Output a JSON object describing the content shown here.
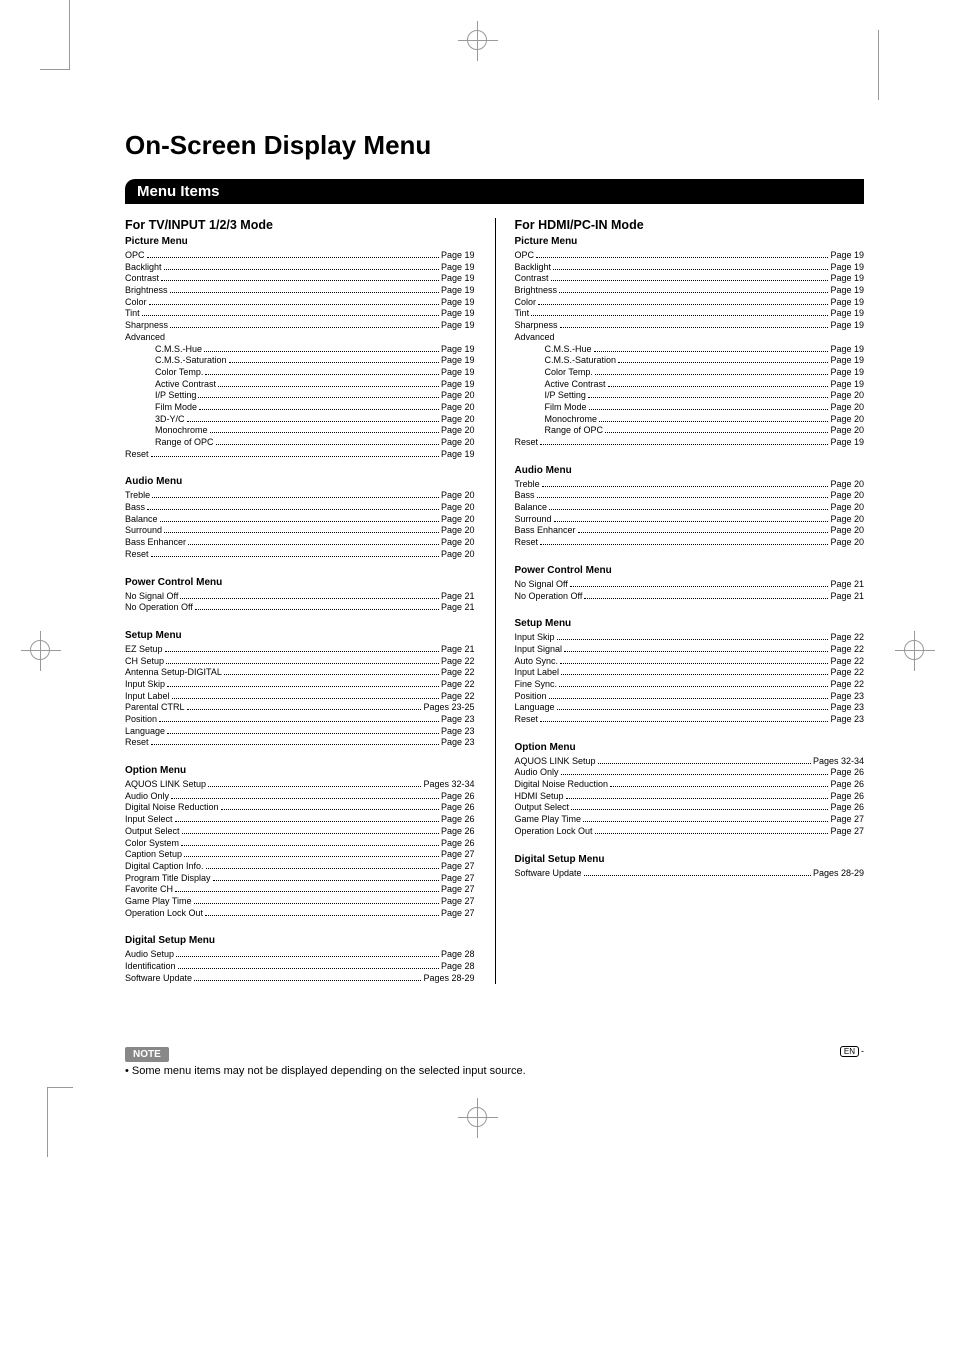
{
  "title": "On-Screen Display Menu",
  "menu_items_header": "Menu Items",
  "note_label": "NOTE",
  "note_text": "Some menu items may not be displayed depending on the selected input source.",
  "footer": {
    "en": "EN",
    "dash": "-"
  },
  "left": {
    "mode": "For TV/INPUT 1/2/3 Mode",
    "sections": [
      {
        "title": "Picture Menu",
        "items": [
          {
            "label": "OPC",
            "page": "Page 19"
          },
          {
            "label": "Backlight",
            "page": "Page 19"
          },
          {
            "label": "Contrast",
            "page": "Page 19"
          },
          {
            "label": "Brightness",
            "page": "Page 19"
          },
          {
            "label": "Color",
            "page": "Page 19"
          },
          {
            "label": "Tint",
            "page": "Page 19"
          },
          {
            "label": "Sharpness",
            "page": "Page 19"
          },
          {
            "label": "Advanced",
            "nopage": true
          },
          {
            "label": "C.M.S.-Hue",
            "page": "Page 19",
            "indent": true
          },
          {
            "label": "C.M.S.-Saturation",
            "page": "Page 19",
            "indent": true
          },
          {
            "label": "Color Temp.",
            "page": "Page 19",
            "indent": true
          },
          {
            "label": "Active Contrast",
            "page": "Page 19",
            "indent": true
          },
          {
            "label": "I/P Setting",
            "page": "Page 20",
            "indent": true
          },
          {
            "label": "Film Mode",
            "page": "Page 20",
            "indent": true
          },
          {
            "label": "3D-Y/C",
            "page": "Page 20",
            "indent": true
          },
          {
            "label": "Monochrome",
            "page": "Page 20",
            "indent": true
          },
          {
            "label": "Range of OPC",
            "page": "Page 20",
            "indent": true
          },
          {
            "label": "Reset",
            "page": "Page 19"
          }
        ]
      },
      {
        "title": "Audio Menu",
        "items": [
          {
            "label": "Treble",
            "page": "Page 20"
          },
          {
            "label": "Bass",
            "page": "Page 20"
          },
          {
            "label": "Balance",
            "page": "Page 20"
          },
          {
            "label": "Surround",
            "page": "Page 20"
          },
          {
            "label": "Bass Enhancer",
            "page": "Page 20"
          },
          {
            "label": "Reset",
            "page": "Page 20"
          }
        ]
      },
      {
        "title": "Power Control Menu",
        "items": [
          {
            "label": "No Signal Off",
            "page": "Page 21"
          },
          {
            "label": "No Operation Off",
            "page": "Page 21"
          }
        ]
      },
      {
        "title": "Setup Menu",
        "items": [
          {
            "label": "EZ Setup",
            "page": "Page 21"
          },
          {
            "label": "CH Setup",
            "page": "Page 22"
          },
          {
            "label": "Antenna Setup-DIGITAL",
            "page": "Page 22"
          },
          {
            "label": "Input Skip",
            "page": "Page 22"
          },
          {
            "label": "Input Label",
            "page": "Page 22"
          },
          {
            "label": "Parental CTRL",
            "page": "Pages 23-25"
          },
          {
            "label": "Position",
            "page": "Page 23"
          },
          {
            "label": "Language",
            "page": "Page 23"
          },
          {
            "label": "Reset",
            "page": "Page 23"
          }
        ]
      },
      {
        "title": "Option Menu",
        "items": [
          {
            "label": "AQUOS LINK Setup",
            "page": "Pages 32-34"
          },
          {
            "label": "Audio Only",
            "page": "Page 26"
          },
          {
            "label": "Digital Noise Reduction",
            "page": "Page 26"
          },
          {
            "label": "Input Select",
            "page": "Page 26"
          },
          {
            "label": "Output Select",
            "page": "Page 26"
          },
          {
            "label": "Color System",
            "page": "Page 26"
          },
          {
            "label": "Caption Setup",
            "page": "Page 27"
          },
          {
            "label": "Digital Caption Info.",
            "page": "Page 27"
          },
          {
            "label": "Program Title Display",
            "page": "Page 27"
          },
          {
            "label": "Favorite CH",
            "page": "Page 27"
          },
          {
            "label": "Game Play Time",
            "page": "Page 27"
          },
          {
            "label": "Operation Lock Out",
            "page": "Page 27"
          }
        ]
      },
      {
        "title": "Digital Setup Menu",
        "items": [
          {
            "label": "Audio Setup",
            "page": "Page 28"
          },
          {
            "label": "Identification",
            "page": "Page 28"
          },
          {
            "label": "Software Update",
            "page": "Pages 28-29"
          }
        ]
      }
    ]
  },
  "right": {
    "mode": "For HDMI/PC-IN Mode",
    "sections": [
      {
        "title": "Picture Menu",
        "items": [
          {
            "label": "OPC",
            "page": "Page 19"
          },
          {
            "label": "Backlight",
            "page": "Page 19"
          },
          {
            "label": "Contrast",
            "page": "Page 19"
          },
          {
            "label": "Brightness",
            "page": "Page 19"
          },
          {
            "label": "Color",
            "page": "Page 19"
          },
          {
            "label": "Tint",
            "page": "Page 19"
          },
          {
            "label": "Sharpness",
            "page": "Page 19"
          },
          {
            "label": "Advanced",
            "nopage": true
          },
          {
            "label": "C.M.S.-Hue",
            "page": "Page 19",
            "indent": true
          },
          {
            "label": "C.M.S.-Saturation",
            "page": "Page 19",
            "indent": true
          },
          {
            "label": "Color Temp.",
            "page": "Page 19",
            "indent": true
          },
          {
            "label": "Active Contrast",
            "page": "Page 19",
            "indent": true
          },
          {
            "label": "I/P Setting",
            "page": "Page 20",
            "indent": true
          },
          {
            "label": "Film Mode",
            "page": "Page 20",
            "indent": true
          },
          {
            "label": "Monochrome",
            "page": "Page 20",
            "indent": true
          },
          {
            "label": "Range of OPC",
            "page": "Page 20",
            "indent": true
          },
          {
            "label": "Reset",
            "page": "Page 19"
          }
        ]
      },
      {
        "title": "Audio Menu",
        "items": [
          {
            "label": "Treble",
            "page": "Page 20"
          },
          {
            "label": "Bass",
            "page": "Page 20"
          },
          {
            "label": "Balance",
            "page": "Page 20"
          },
          {
            "label": "Surround",
            "page": "Page 20"
          },
          {
            "label": "Bass Enhancer",
            "page": "Page 20"
          },
          {
            "label": "Reset",
            "page": "Page 20"
          }
        ]
      },
      {
        "title": "Power Control Menu",
        "items": [
          {
            "label": "No Signal Off",
            "page": "Page 21"
          },
          {
            "label": "No Operation Off",
            "page": "Page 21"
          }
        ]
      },
      {
        "title": "Setup Menu",
        "items": [
          {
            "label": "Input Skip",
            "page": "Page 22"
          },
          {
            "label": "Input Signal",
            "page": "Page 22"
          },
          {
            "label": "Auto Sync.",
            "page": "Page 22"
          },
          {
            "label": "Input Label",
            "page": "Page 22"
          },
          {
            "label": "Fine Sync.",
            "page": "Page 22"
          },
          {
            "label": "Position",
            "page": "Page 23"
          },
          {
            "label": "Language",
            "page": "Page 23"
          },
          {
            "label": "Reset",
            "page": "Page 23"
          }
        ]
      },
      {
        "title": "Option Menu",
        "items": [
          {
            "label": "AQUOS LINK Setup",
            "page": "Pages 32-34"
          },
          {
            "label": "Audio Only",
            "page": "Page 26"
          },
          {
            "label": "Digital Noise Reduction",
            "page": "Page 26"
          },
          {
            "label": "HDMI Setup",
            "page": "Page 26"
          },
          {
            "label": "Output Select",
            "page": "Page 26"
          },
          {
            "label": "Game Play Time",
            "page": "Page 27"
          },
          {
            "label": "Operation Lock Out",
            "page": "Page 27"
          }
        ]
      },
      {
        "title": "Digital Setup Menu",
        "items": [
          {
            "label": "Software Update",
            "page": "Pages 28-29"
          }
        ]
      }
    ]
  }
}
